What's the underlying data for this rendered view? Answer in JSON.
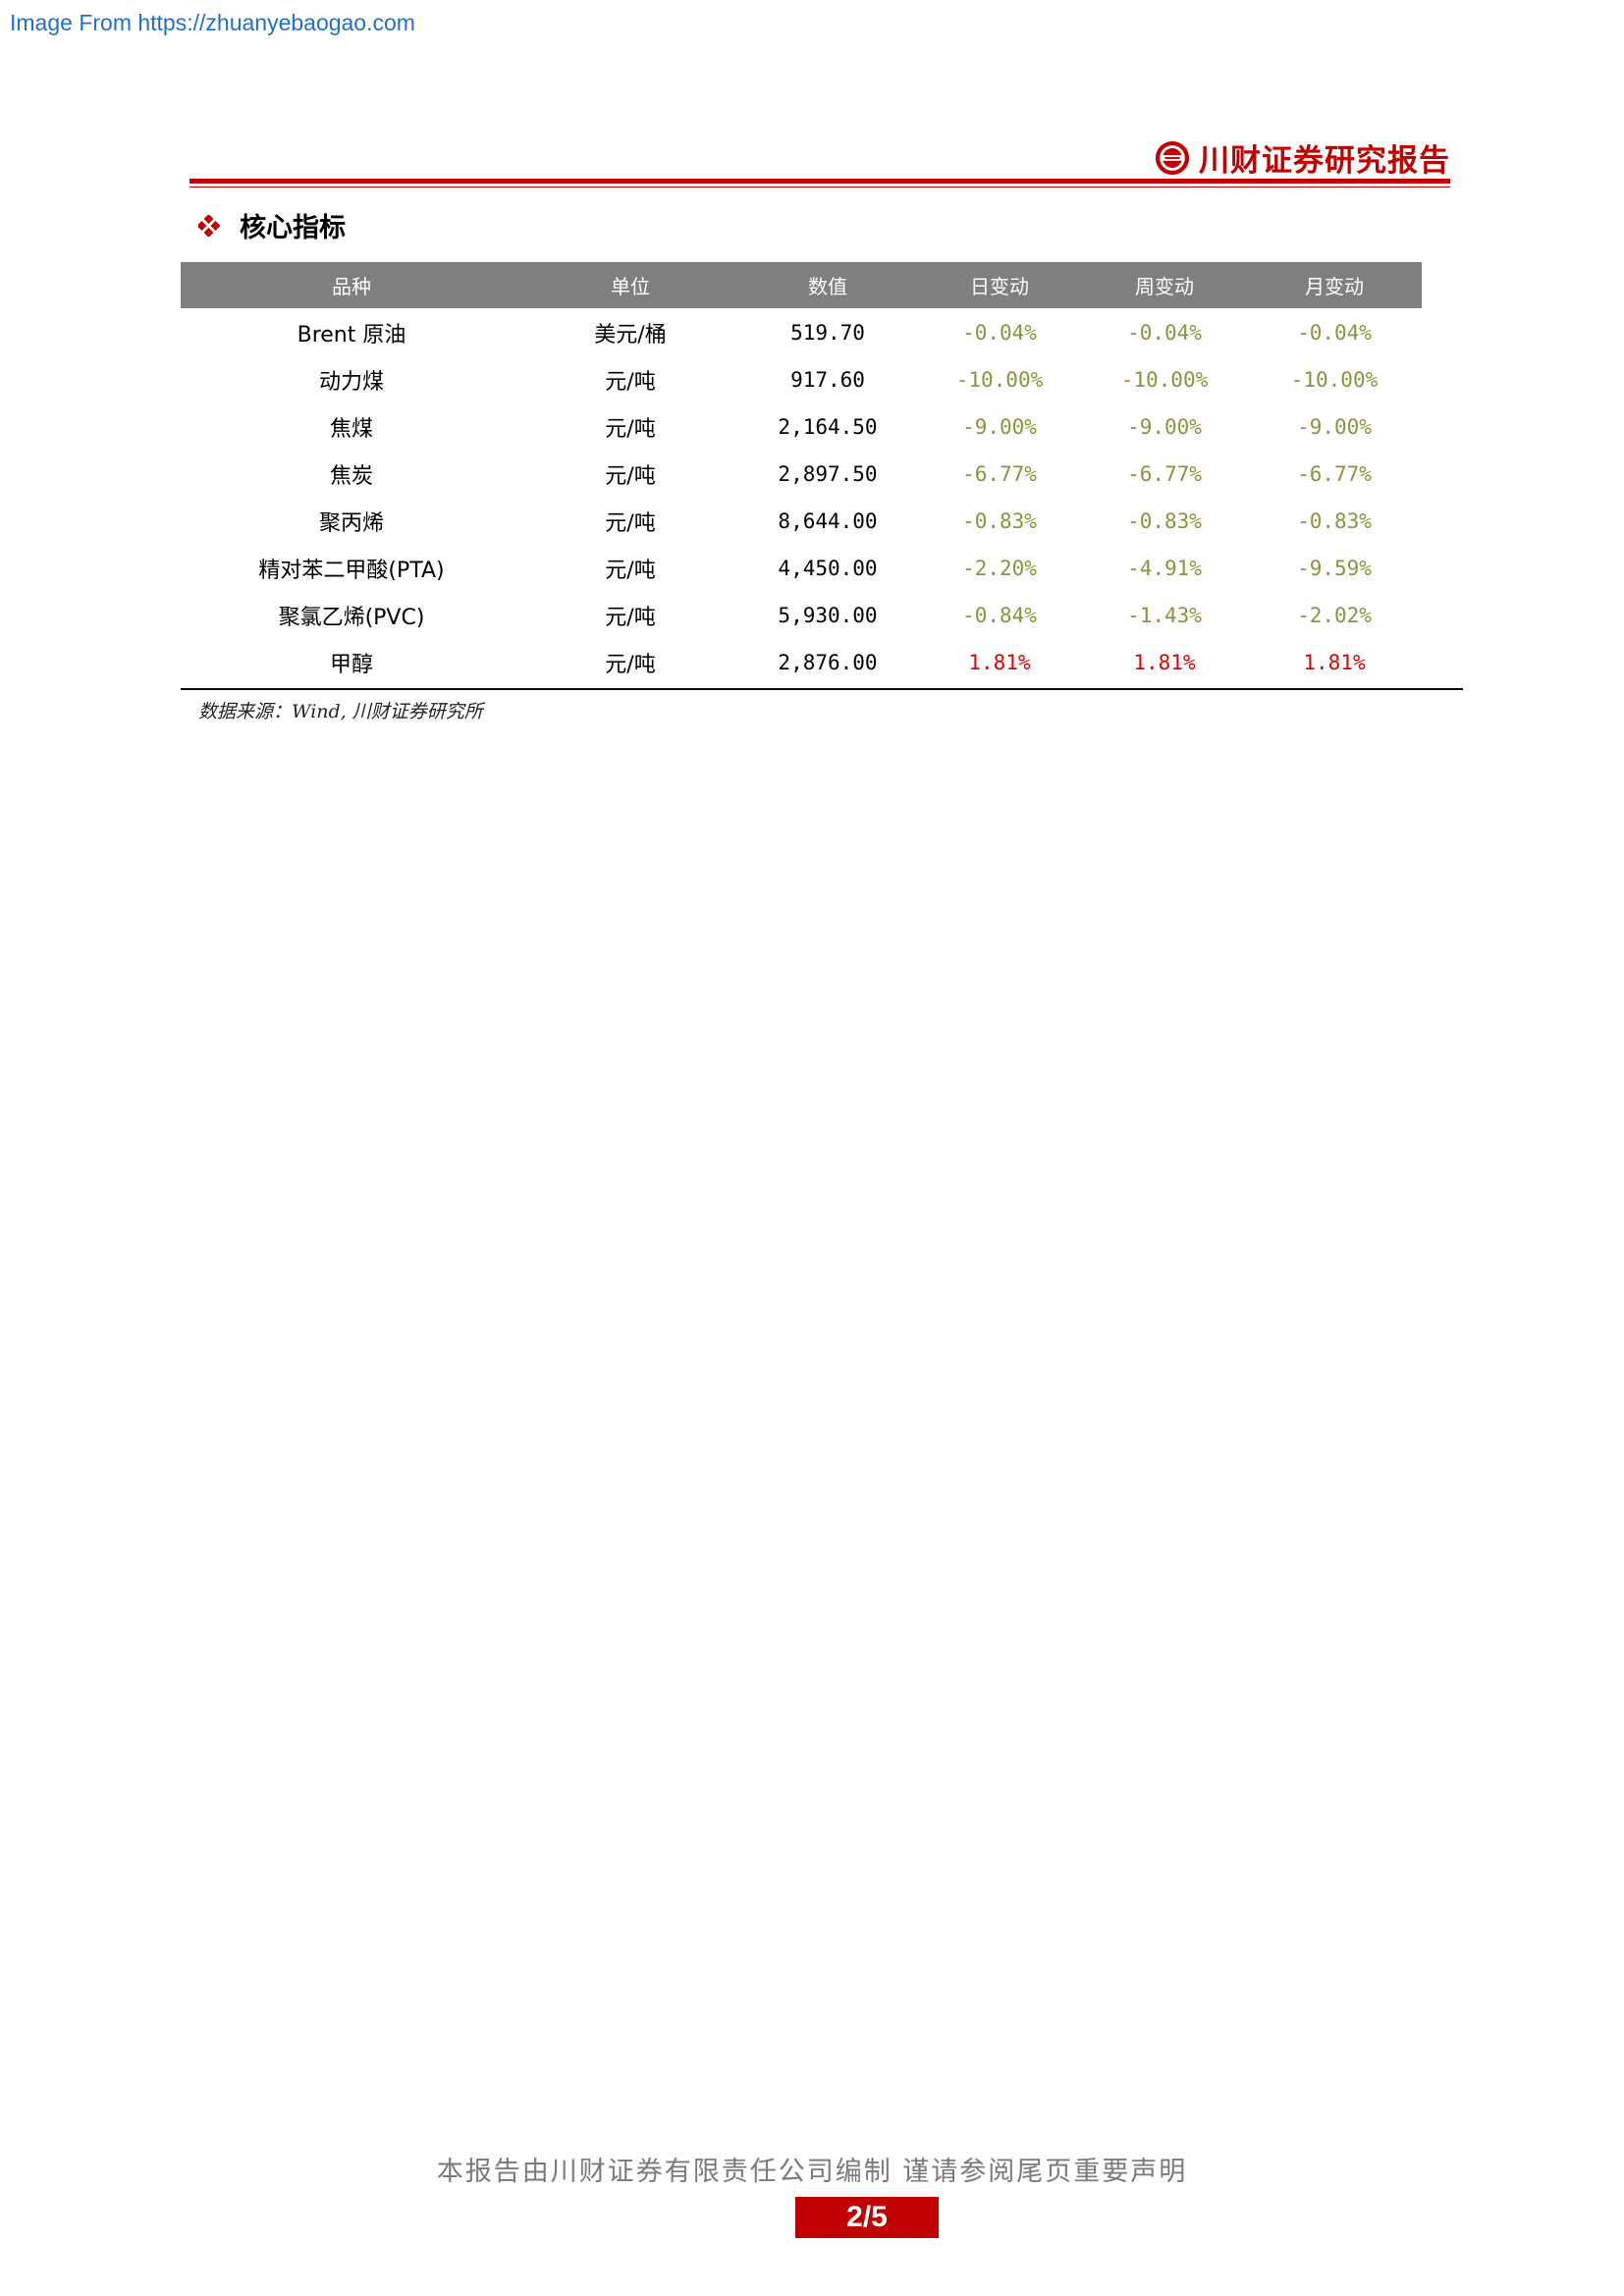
{
  "watermark": "Image From https://zhuanyebaogao.com",
  "header": {
    "brand_name": "川财证券研究报告"
  },
  "section": {
    "title": "核心指标"
  },
  "table": {
    "headers": [
      "品种",
      "单位",
      "数值",
      "日变动",
      "周变动",
      "月变动"
    ],
    "rows": [
      {
        "name": "Brent 原油",
        "unit": "美元/桶",
        "value": "519.70",
        "day": "-0.04%",
        "week": "-0.04%",
        "month": "-0.04%",
        "day_sign": "neg",
        "week_sign": "neg",
        "month_sign": "neg"
      },
      {
        "name": "动力煤",
        "unit": "元/吨",
        "value": "917.60",
        "day": "-10.00%",
        "week": "-10.00%",
        "month": "-10.00%",
        "day_sign": "neg",
        "week_sign": "neg",
        "month_sign": "neg"
      },
      {
        "name": "焦煤",
        "unit": "元/吨",
        "value": "2,164.50",
        "day": "-9.00%",
        "week": "-9.00%",
        "month": "-9.00%",
        "day_sign": "neg",
        "week_sign": "neg",
        "month_sign": "neg"
      },
      {
        "name": "焦炭",
        "unit": "元/吨",
        "value": "2,897.50",
        "day": "-6.77%",
        "week": "-6.77%",
        "month": "-6.77%",
        "day_sign": "neg",
        "week_sign": "neg",
        "month_sign": "neg"
      },
      {
        "name": "聚丙烯",
        "unit": "元/吨",
        "value": "8,644.00",
        "day": "-0.83%",
        "week": "-0.83%",
        "month": "-0.83%",
        "day_sign": "neg",
        "week_sign": "neg",
        "month_sign": "neg"
      },
      {
        "name": "精对苯二甲酸(PTA)",
        "unit": "元/吨",
        "value": "4,450.00",
        "day": "-2.20%",
        "week": "-4.91%",
        "month": "-9.59%",
        "day_sign": "neg",
        "week_sign": "neg",
        "month_sign": "neg"
      },
      {
        "name": "聚氯乙烯(PVC)",
        "unit": "元/吨",
        "value": "5,930.00",
        "day": "-0.84%",
        "week": "-1.43%",
        "month": "-2.02%",
        "day_sign": "neg",
        "week_sign": "neg",
        "month_sign": "neg"
      },
      {
        "name": "甲醇",
        "unit": "元/吨",
        "value": "2,876.00",
        "day": "1.81%",
        "week": "1.81%",
        "month": "1.81%",
        "day_sign": "pos",
        "week_sign": "pos",
        "month_sign": "pos"
      }
    ]
  },
  "source": "数据来源：Wind, 川财证券研究所",
  "footer": {
    "disclaimer": "本报告由川财证券有限责任公司编制 谨请参阅尾页重要声明",
    "page": "2/5"
  },
  "colors": {
    "accent": "#c00000",
    "negative": "#7f9a3b",
    "positive": "#e00000",
    "header_bg": "#7f7f7f"
  }
}
